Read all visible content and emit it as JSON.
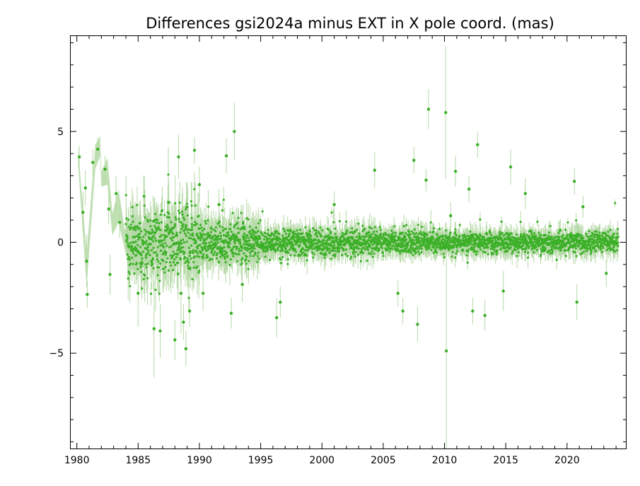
{
  "chart_data": {
    "type": "scatter",
    "title": "Differences gsi2024a minus EXT in X pole coord. (mas)",
    "xlabel": "",
    "ylabel": "",
    "xlim": [
      1979.5,
      2024.8
    ],
    "ylim": [
      -9.3,
      9.3
    ],
    "xticks_major": [
      1980,
      1985,
      1990,
      1995,
      2000,
      2005,
      2010,
      2015,
      2020
    ],
    "xticks_minor_step": 1,
    "yticks_major": [
      -5,
      0,
      5
    ],
    "yticks_minor_step": 1,
    "grid": false,
    "legend": "none",
    "colors": {
      "points": "#3cb028",
      "error_bars": "#b5d9a6",
      "early_band": "#b5d9a6",
      "frame": "#000000"
    },
    "early_band": [
      {
        "x": 1980.1,
        "lo": 3.5,
        "hi": 4.3
      },
      {
        "x": 1980.8,
        "lo": -2.0,
        "hi": -0.5
      },
      {
        "x": 1981.5,
        "lo": 3.3,
        "hi": 4.4
      },
      {
        "x": 1981.9,
        "lo": 3.9,
        "hi": 4.8
      },
      {
        "x": 1982.0,
        "lo": 2.5,
        "hi": 3.2
      },
      {
        "x": 1982.5,
        "lo": 2.6,
        "hi": 3.8
      },
      {
        "x": 1982.9,
        "lo": 0.3,
        "hi": 1.3
      },
      {
        "x": 1983.4,
        "lo": 0.9,
        "hi": 2.4
      },
      {
        "x": 1983.9,
        "lo": -0.3,
        "hi": 0.6
      },
      {
        "x": 1984.3,
        "lo": -1.2,
        "hi": 0.4
      },
      {
        "x": 1984.8,
        "lo": -1.3,
        "hi": 0.6
      },
      {
        "x": 1985.5,
        "lo": -1.1,
        "hi": 0.7
      }
    ],
    "points": [
      {
        "x": 1980.2,
        "y": 3.85,
        "err": 0.5
      },
      {
        "x": 1980.5,
        "y": 1.35,
        "err": 0.9
      },
      {
        "x": 1980.7,
        "y": 2.45,
        "err": 0.8
      },
      {
        "x": 1980.8,
        "y": -0.85,
        "err": 1.2
      },
      {
        "x": 1980.85,
        "y": -2.35,
        "err": 0.6
      },
      {
        "x": 1981.3,
        "y": 3.6,
        "err": 0.6
      },
      {
        "x": 1981.7,
        "y": 4.2,
        "err": 0.5
      },
      {
        "x": 1982.3,
        "y": 3.3,
        "err": 0.6
      },
      {
        "x": 1982.6,
        "y": 1.5,
        "err": 0.7
      },
      {
        "x": 1982.7,
        "y": -1.45,
        "err": 0.9
      },
      {
        "x": 1983.2,
        "y": 2.2,
        "err": 0.8
      },
      {
        "x": 1983.5,
        "y": 0.9,
        "err": 0.7
      },
      {
        "x": 1985.0,
        "y": -2.3,
        "err": 1.5
      },
      {
        "x": 1986.3,
        "y": -3.9,
        "err": 2.2
      },
      {
        "x": 1986.8,
        "y": -4.0,
        "err": 1.2
      },
      {
        "x": 1987.5,
        "y": 1.8,
        "err": 1.0
      },
      {
        "x": 1988.0,
        "y": -4.4,
        "err": 0.9
      },
      {
        "x": 1988.3,
        "y": 3.85,
        "err": 1.0
      },
      {
        "x": 1988.5,
        "y": -2.3,
        "err": 1.8
      },
      {
        "x": 1988.7,
        "y": -3.6,
        "err": 0.8
      },
      {
        "x": 1988.9,
        "y": -4.8,
        "err": 0.8
      },
      {
        "x": 1989.2,
        "y": -3.1,
        "err": 0.7
      },
      {
        "x": 1989.6,
        "y": 4.15,
        "err": 0.6
      },
      {
        "x": 1990.0,
        "y": 2.6,
        "err": 0.8
      },
      {
        "x": 1990.3,
        "y": -2.3,
        "err": 0.8
      },
      {
        "x": 1991.6,
        "y": 1.7,
        "err": 0.7
      },
      {
        "x": 1992.2,
        "y": 3.9,
        "err": 0.8
      },
      {
        "x": 1992.6,
        "y": -3.2,
        "err": 0.7
      },
      {
        "x": 1992.85,
        "y": 5.0,
        "err": 1.3
      },
      {
        "x": 1993.5,
        "y": -1.9,
        "err": 0.8
      },
      {
        "x": 1996.3,
        "y": -3.4,
        "err": 0.9
      },
      {
        "x": 1996.6,
        "y": -2.7,
        "err": 0.7
      },
      {
        "x": 2001.0,
        "y": 1.7,
        "err": 0.6
      },
      {
        "x": 2004.3,
        "y": 3.25,
        "err": 0.8
      },
      {
        "x": 2006.2,
        "y": -2.3,
        "err": 0.6
      },
      {
        "x": 2006.6,
        "y": -3.1,
        "err": 0.6
      },
      {
        "x": 2007.5,
        "y": 3.7,
        "err": 0.6
      },
      {
        "x": 2007.8,
        "y": -3.7,
        "err": 0.8
      },
      {
        "x": 2008.5,
        "y": 2.8,
        "err": 0.5
      },
      {
        "x": 2008.7,
        "y": 6.0,
        "err": 0.9
      },
      {
        "x": 2010.1,
        "y": 5.85,
        "err": 3.0
      },
      {
        "x": 2010.15,
        "y": -4.9,
        "err": 4.4
      },
      {
        "x": 2010.5,
        "y": 1.2,
        "err": 0.6
      },
      {
        "x": 2010.9,
        "y": 3.2,
        "err": 0.7
      },
      {
        "x": 2012.0,
        "y": 2.4,
        "err": 0.6
      },
      {
        "x": 2012.3,
        "y": -3.1,
        "err": 0.6
      },
      {
        "x": 2012.7,
        "y": 4.4,
        "err": 0.6
      },
      {
        "x": 2013.3,
        "y": -3.3,
        "err": 0.7
      },
      {
        "x": 2014.8,
        "y": -2.2,
        "err": 0.9
      },
      {
        "x": 2015.4,
        "y": 3.4,
        "err": 0.8
      },
      {
        "x": 2016.6,
        "y": 2.2,
        "err": 0.7
      },
      {
        "x": 2020.6,
        "y": 2.75,
        "err": 0.6
      },
      {
        "x": 2020.8,
        "y": -2.7,
        "err": 0.8
      },
      {
        "x": 2021.3,
        "y": 1.6,
        "err": 0.5
      },
      {
        "x": 2023.2,
        "y": -1.4,
        "err": 0.6
      }
    ],
    "dense_envelope": [
      {
        "x_start": 1984.0,
        "x_end": 1990.0,
        "y_std": 0.75,
        "err": 0.8
      },
      {
        "x_start": 1990.0,
        "y_std": 0.45,
        "x_end": 1995.0,
        "err": 0.6
      },
      {
        "x_start": 1995.0,
        "x_end": 2005.0,
        "y_std": 0.28,
        "err": 0.4
      },
      {
        "x_start": 2005.0,
        "x_end": 2024.2,
        "y_std": 0.22,
        "err": 0.35
      }
    ]
  }
}
